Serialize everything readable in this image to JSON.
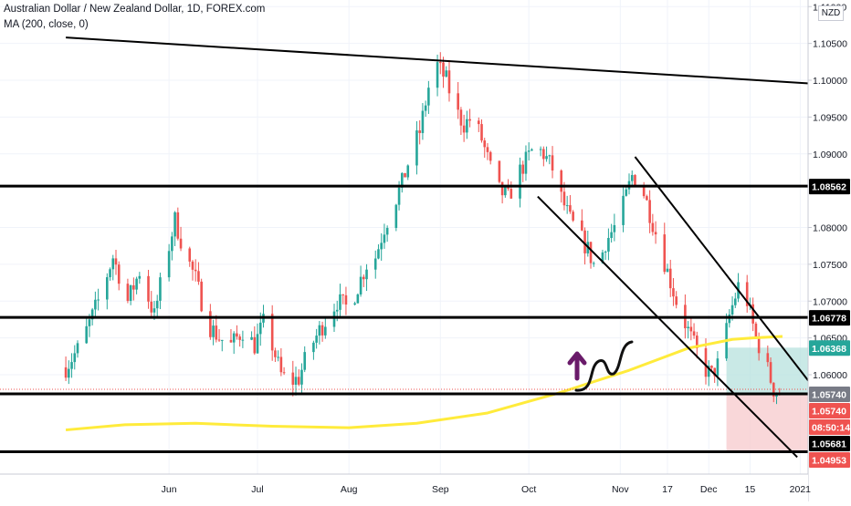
{
  "header": {
    "title": "Australian Dollar / New Zealand Dollar, 1D, FOREX.com",
    "indicator": "MA (200, close, 0)",
    "currency": "NZD"
  },
  "colors": {
    "up": "#26a69a",
    "down": "#ef5350",
    "ma": "#ffeb3b",
    "grid": "#f0f3fa",
    "line": "#000000",
    "arrow": "#6a1b6a",
    "target": "#b2dfdb",
    "stop": "#f8cdd0",
    "axis_text": "#131722"
  },
  "chart_data": {
    "type": "candlestick",
    "title": "Australian Dollar / New Zealand Dollar, 1D, FOREX.com",
    "ylim": [
      1.0465,
      1.111
    ],
    "y_ticks": [
      "1.11000",
      "1.10500",
      "1.10000",
      "1.09500",
      "1.09000",
      "1.08000",
      "1.07500",
      "1.07000",
      "1.06500",
      "1.06000"
    ],
    "x_ticks": [
      "Jun",
      "Jul",
      "Aug",
      "Sep",
      "Oct",
      "Nov",
      "17",
      "Dec",
      "15",
      "2021"
    ],
    "x_tick_dates": [
      "2020-06-01",
      "2020-07-01",
      "2020-08-01",
      "2020-09-01",
      "2020-10-01",
      "2020-11-01",
      "2020-11-17",
      "2020-12-01",
      "2020-12-15",
      "2021-01-01"
    ],
    "grid": true,
    "price_path": [
      [
        "2020-04-27",
        1.061
      ],
      [
        "2020-05-02",
        1.064
      ],
      [
        "2020-05-08",
        1.07
      ],
      [
        "2020-05-13",
        1.076
      ],
      [
        "2020-05-18",
        1.07
      ],
      [
        "2020-05-22",
        1.074
      ],
      [
        "2020-05-27",
        1.068
      ],
      [
        "2020-05-30",
        1.074
      ],
      [
        "2020-06-03",
        1.081
      ],
      [
        "2020-06-06",
        1.077
      ],
      [
        "2020-06-10",
        1.073
      ],
      [
        "2020-06-14",
        1.067
      ],
      [
        "2020-06-18",
        1.065
      ],
      [
        "2020-06-22",
        1.064
      ],
      [
        "2020-06-26",
        1.066
      ],
      [
        "2020-06-30",
        1.064
      ],
      [
        "2020-07-03",
        1.067
      ],
      [
        "2020-07-06",
        1.064
      ],
      [
        "2020-07-09",
        1.06
      ],
      [
        "2020-07-12",
        1.059
      ],
      [
        "2020-07-15",
        1.0595
      ],
      [
        "2020-07-18",
        1.063
      ],
      [
        "2020-07-22",
        1.066
      ],
      [
        "2020-07-25",
        1.068
      ],
      [
        "2020-07-28",
        1.07
      ],
      [
        "2020-08-01",
        1.069
      ],
      [
        "2020-08-04",
        1.072
      ],
      [
        "2020-08-07",
        1.075
      ],
      [
        "2020-08-10",
        1.076
      ],
      [
        "2020-08-13",
        1.08
      ],
      [
        "2020-08-16",
        1.083
      ],
      [
        "2020-08-19",
        1.086
      ],
      [
        "2020-08-22",
        1.09
      ],
      [
        "2020-08-25",
        1.093
      ],
      [
        "2020-08-28",
        1.099
      ],
      [
        "2020-08-31",
        1.102
      ],
      [
        "2020-09-03",
        1.1
      ],
      [
        "2020-09-06",
        1.096
      ],
      [
        "2020-09-09",
        1.094
      ],
      [
        "2020-09-12",
        1.095
      ],
      [
        "2020-09-15",
        1.092
      ],
      [
        "2020-09-18",
        1.088
      ],
      [
        "2020-09-21",
        1.085
      ],
      [
        "2020-09-24",
        1.084
      ],
      [
        "2020-09-27",
        1.087
      ],
      [
        "2020-09-30",
        1.089
      ],
      [
        "2020-10-03",
        1.091
      ],
      [
        "2020-10-06",
        1.09
      ],
      [
        "2020-10-09",
        1.088
      ],
      [
        "2020-10-12",
        1.084
      ],
      [
        "2020-10-15",
        1.081
      ],
      [
        "2020-10-18",
        1.079
      ],
      [
        "2020-10-21",
        1.077
      ],
      [
        "2020-10-24",
        1.074
      ],
      [
        "2020-10-27",
        1.078
      ],
      [
        "2020-10-30",
        1.08
      ],
      [
        "2020-11-02",
        1.083
      ],
      [
        "2020-11-05",
        1.087
      ],
      [
        "2020-11-08",
        1.086
      ],
      [
        "2020-11-11",
        1.082
      ],
      [
        "2020-11-14",
        1.078
      ],
      [
        "2020-11-17",
        1.074
      ],
      [
        "2020-11-20",
        1.07
      ],
      [
        "2020-11-23",
        1.067
      ],
      [
        "2020-11-26",
        1.064
      ],
      [
        "2020-11-29",
        1.061
      ],
      [
        "2020-12-02",
        1.06
      ],
      [
        "2020-12-05",
        1.062
      ],
      [
        "2020-12-08",
        1.068
      ],
      [
        "2020-12-11",
        1.072
      ],
      [
        "2020-12-14",
        1.07
      ],
      [
        "2020-12-17",
        1.065
      ],
      [
        "2020-12-20",
        1.062
      ],
      [
        "2020-12-23",
        1.058
      ],
      [
        "2020-12-26",
        1.0574
      ]
    ],
    "ma_200": [
      [
        "2020-04-27",
        1.0525
      ],
      [
        "2020-05-17",
        1.0532
      ],
      [
        "2020-06-10",
        1.0534
      ],
      [
        "2020-07-06",
        1.053
      ],
      [
        "2020-08-01",
        1.0528
      ],
      [
        "2020-08-24",
        1.0534
      ],
      [
        "2020-09-17",
        1.0548
      ],
      [
        "2020-10-11",
        1.0575
      ],
      [
        "2020-11-04",
        1.0606
      ],
      [
        "2020-11-24",
        1.0636
      ],
      [
        "2020-12-09",
        1.0648
      ],
      [
        "2020-12-16",
        1.065
      ],
      [
        "2020-12-26",
        1.0652
      ]
    ],
    "horizontal_levels": [
      1.08562,
      1.06778,
      1.0574,
      1.04953
    ],
    "trendlines": [
      [
        [
          "2020-04-27",
          1.1058
        ],
        [
          "2021-01-11",
          1.0994
        ]
      ],
      [
        [
          "2020-10-04",
          1.0842
        ],
        [
          "2020-12-31",
          1.0488
        ]
      ],
      [
        [
          "2020-11-06",
          1.0896
        ],
        [
          "2021-01-07",
          1.0575
        ]
      ]
    ],
    "position": {
      "entry": 1.0574,
      "target": 1.06368,
      "stop": 1.04953,
      "from": "2020-12-07",
      "to": "2021-01-11"
    },
    "price_labels": [
      {
        "text": "1.08562",
        "value": 1.08562,
        "style": "dark"
      },
      {
        "text": "1.06778",
        "value": 1.06778,
        "style": "dark"
      },
      {
        "text": "1.06368",
        "value": 1.06368,
        "style": "teal"
      },
      {
        "text": "1.05740",
        "value": 1.0574,
        "style": "gray"
      },
      {
        "text": "1.05740",
        "value": 1.0574,
        "style": "red"
      },
      {
        "text": "08:50:14",
        "value": 1.0574,
        "style": "red"
      },
      {
        "text": "1.05681",
        "value": 1.05681,
        "style": "dark"
      },
      {
        "text": "1.04953",
        "value": 1.04953,
        "style": "red"
      }
    ]
  }
}
